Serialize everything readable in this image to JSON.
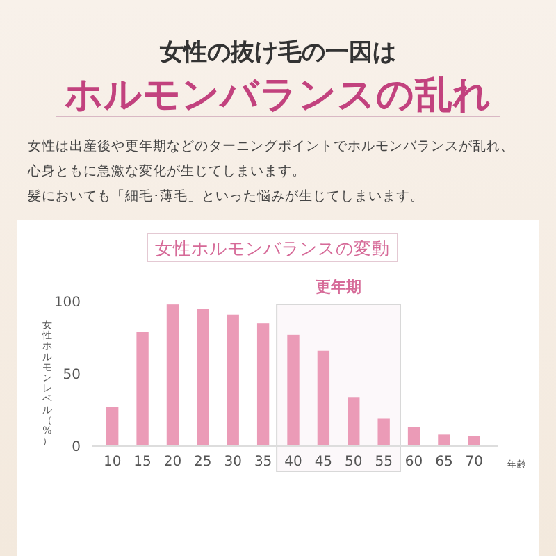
{
  "chart_data": {
    "type": "bar",
    "title": "女性の抜け毛の一因は",
    "subtitle": "ホルモンバランスの乱れ",
    "annotations": [
      "女性は出産後や更年期などのターニングポイントでホルモンバランスが乱れ、",
      "心身ともに急激な変化が生じてしまいます。",
      "髪においても「細毛･薄毛」といった悩みが生じてしまいます。",
      "女性ホルモンバランスの変動"
    ],
    "xlabel": "年齢",
    "ylabel": "女性ホルモンレベル（%）",
    "categories": [
      "10",
      "15",
      "20",
      "25",
      "30",
      "35",
      "40",
      "45",
      "50",
      "55",
      "60",
      "65",
      "70"
    ],
    "values": [
      27,
      79,
      98,
      95,
      91,
      85,
      77,
      66,
      34,
      19,
      13,
      8,
      7
    ],
    "color": "#eb9bb7",
    "ylim": [
      0,
      100
    ],
    "yticks": [
      0,
      50,
      100
    ],
    "grid": false,
    "bands": [
      {
        "axis": "x",
        "from": "40",
        "to": "55",
        "label": "更年期",
        "color": "#d8d8d8"
      }
    ]
  }
}
